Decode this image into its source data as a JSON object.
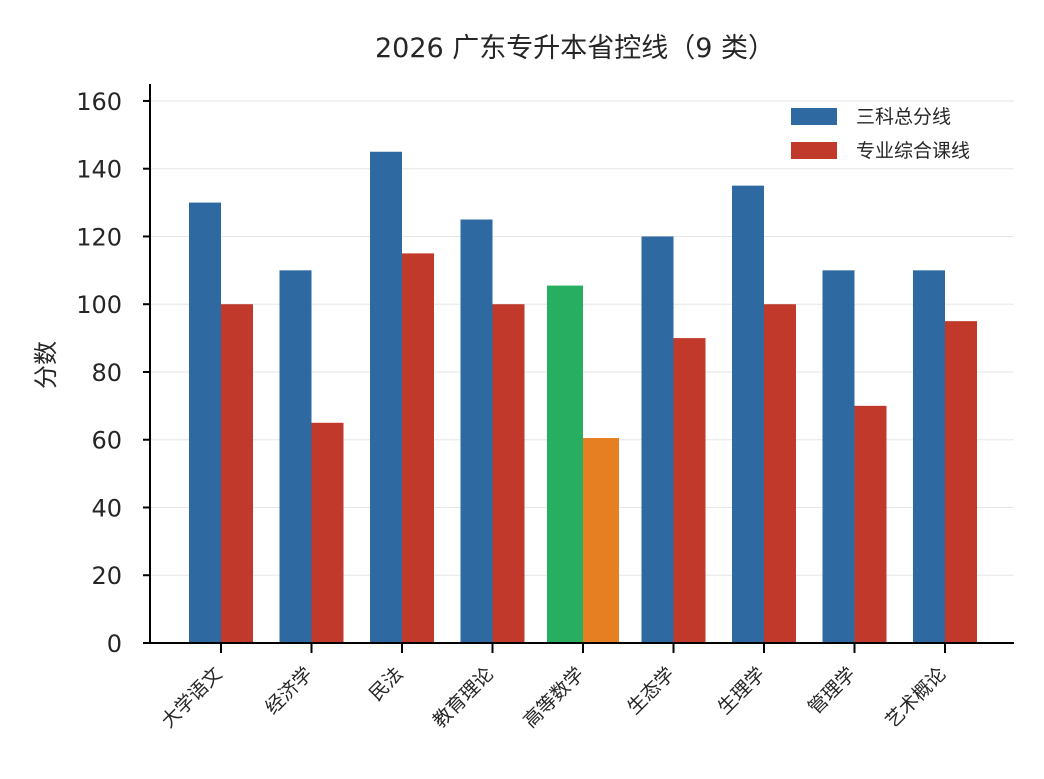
{
  "chart_data": {
    "type": "bar",
    "title": "2026 广东专升本省控线（9 类）",
    "xlabel": "",
    "ylabel": "分数",
    "ylim": [
      0,
      165
    ],
    "yticks": [
      0,
      20,
      40,
      60,
      80,
      100,
      120,
      140,
      160
    ],
    "grid": "horizontal",
    "legend_position": "top-right",
    "categories": [
      "大学语文",
      "经济学",
      "民法",
      "教育理论",
      "高等数学",
      "生态学",
      "生理学",
      "管理学",
      "艺术概论"
    ],
    "series": [
      {
        "name": "三科总分线",
        "color": "#2e6aa1",
        "values": [
          130,
          110,
          145,
          125,
          105.5,
          120,
          135,
          110,
          110
        ]
      },
      {
        "name": "专业综合课线",
        "color": "#c0392b",
        "values": [
          100,
          65,
          115,
          100,
          60.5,
          90,
          100,
          70,
          95
        ]
      }
    ],
    "highlight": {
      "category": "高等数学",
      "colors": [
        "#27ae60",
        "#e67e22"
      ]
    }
  }
}
